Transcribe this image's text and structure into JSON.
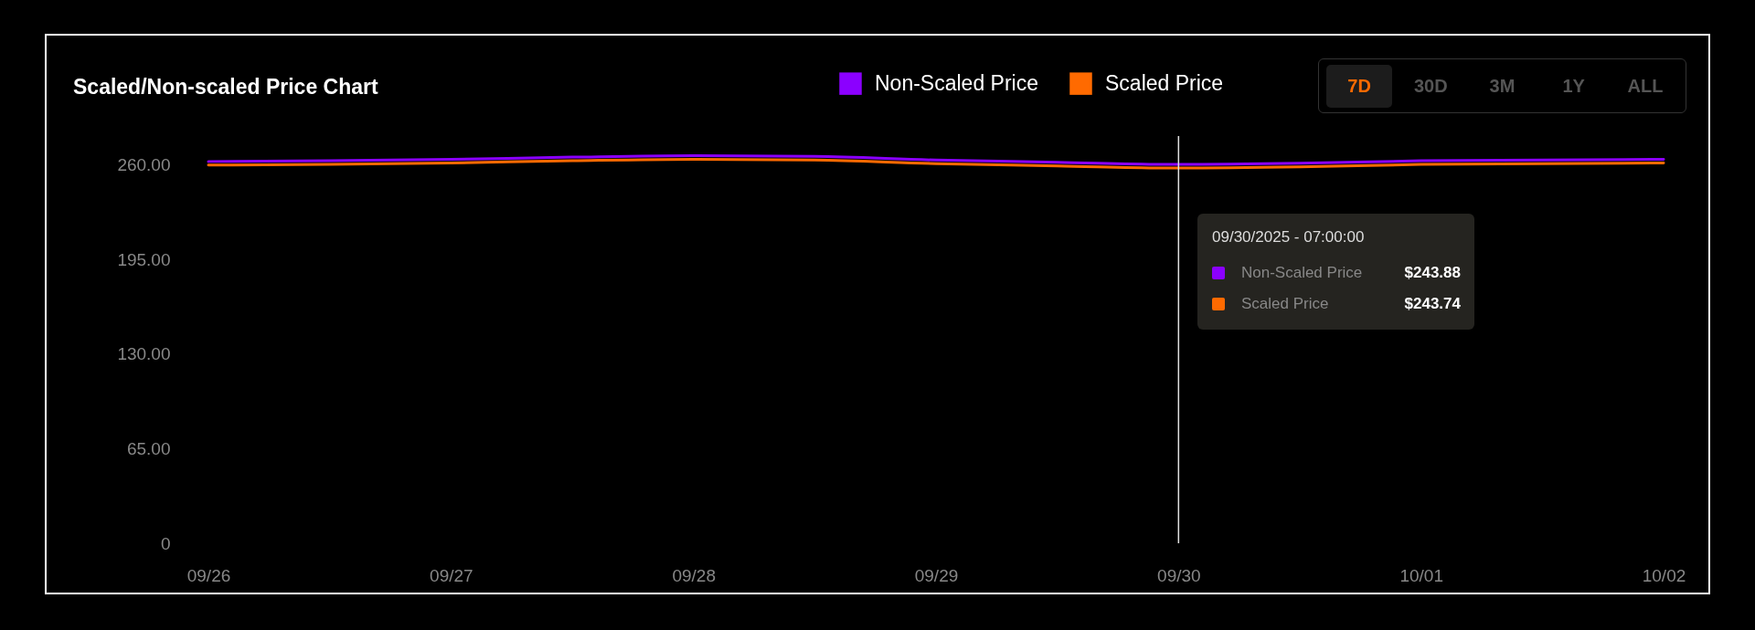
{
  "chart_data": {
    "type": "line",
    "title": "Scaled/Non-scaled Price Chart",
    "x": [
      "2025-09-26T00:00",
      "2025-09-26T12:00",
      "2025-09-27T00:00",
      "2025-09-27T12:00",
      "2025-09-28T00:00",
      "2025-09-28T12:00",
      "2025-09-29T00:00",
      "2025-09-29T12:00",
      "2025-09-30T00:00",
      "2025-09-30T12:00",
      "2025-10-01T00:00",
      "2025-10-01T12:00",
      "2025-10-02T00:00"
    ],
    "series": [
      {
        "name": "Non-Scaled Price",
        "color": "#8b00ff",
        "values": [
          262.5,
          263,
          264,
          265.5,
          266.5,
          266,
          263.5,
          262,
          260.5,
          261.3,
          263,
          263.5,
          264
        ]
      },
      {
        "name": "Scaled Price",
        "color": "#ff6a00",
        "values": [
          260,
          260.5,
          261.5,
          263,
          264,
          263.5,
          261,
          259.5,
          258,
          258.8,
          260.5,
          261,
          261.5
        ]
      }
    ],
    "xlim": [
      "2025-09-26T00:00",
      "2025-10-02T00:00"
    ],
    "xticks": [
      {
        "value": "2025-09-26",
        "label": "09/26"
      },
      {
        "value": "2025-09-27",
        "label": "09/27"
      },
      {
        "value": "2025-09-28",
        "label": "09/28"
      },
      {
        "value": "2025-09-29",
        "label": "09/29"
      },
      {
        "value": "2025-09-30",
        "label": "09/30"
      },
      {
        "value": "2025-10-01",
        "label": "10/01"
      },
      {
        "value": "2025-10-02",
        "label": "10/02"
      }
    ],
    "ylim": [
      0,
      280
    ],
    "yticks": [
      0,
      {
        "value": 65,
        "label": "65.00"
      },
      {
        "value": 130,
        "label": "130.00"
      },
      {
        "value": 195,
        "label": "195.00"
      },
      {
        "value": 260,
        "label": "260.00"
      }
    ],
    "ref_lines": [
      {
        "axis": "x",
        "value": "2025-09-30T00:00",
        "color": "#e0e0e0"
      }
    ],
    "annotations": [
      "09/30/2025 - 07:00:00",
      "$243.88",
      "$243.74",
      "7D",
      "30D",
      "3M",
      "1Y",
      "ALL"
    ],
    "legend": "top right",
    "grid": false,
    "marker": "none",
    "line_style": "solid"
  }
}
